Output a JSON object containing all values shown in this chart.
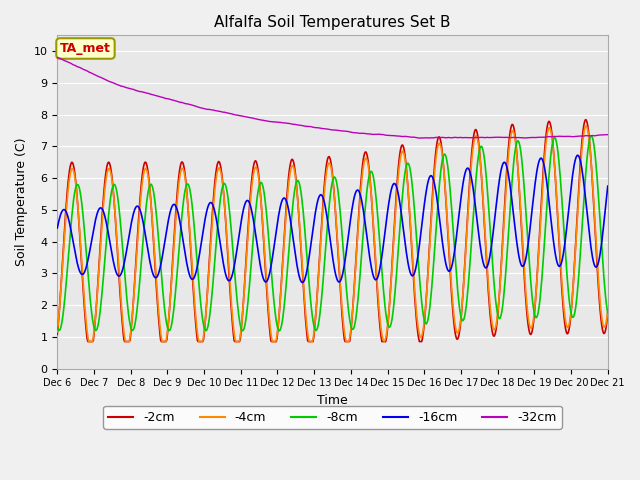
{
  "title": "Alfalfa Soil Temperatures Set B",
  "xlabel": "Time",
  "ylabel": "Soil Temperature (C)",
  "ylim": [
    0.0,
    10.5
  ],
  "yticks": [
    0.0,
    1.0,
    2.0,
    3.0,
    4.0,
    5.0,
    6.0,
    7.0,
    8.0,
    9.0,
    10.0
  ],
  "fig_facecolor": "#f0f0f0",
  "ax_facecolor": "#e8e8e8",
  "legend_entries": [
    "-2cm",
    "-4cm",
    "-8cm",
    "-16cm",
    "-32cm"
  ],
  "line_colors": {
    "-2cm": "#cc0000",
    "-4cm": "#ff8800",
    "-8cm": "#00cc00",
    "-16cm": "#0000ee",
    "-32cm": "#bb00bb"
  },
  "ta_met_label": "TA_met",
  "ta_met_box_facecolor": "#ffffcc",
  "ta_met_box_edgecolor": "#999900",
  "ta_met_text_color": "#cc0000",
  "xtick_labels": [
    "Dec 6",
    "Dec 7",
    "Dec 8",
    "Dec 9",
    "Dec 10",
    "Dec 11",
    "Dec 12",
    "Dec 13",
    "Dec 14",
    "Dec 15",
    "Dec 16",
    "Dec 17",
    "Dec 18",
    "Dec 19",
    "Dec 20",
    "Dec 21"
  ],
  "grid_color": "#ffffff",
  "title_fontsize": 11,
  "axis_label_fontsize": 9,
  "tick_fontsize": 8
}
